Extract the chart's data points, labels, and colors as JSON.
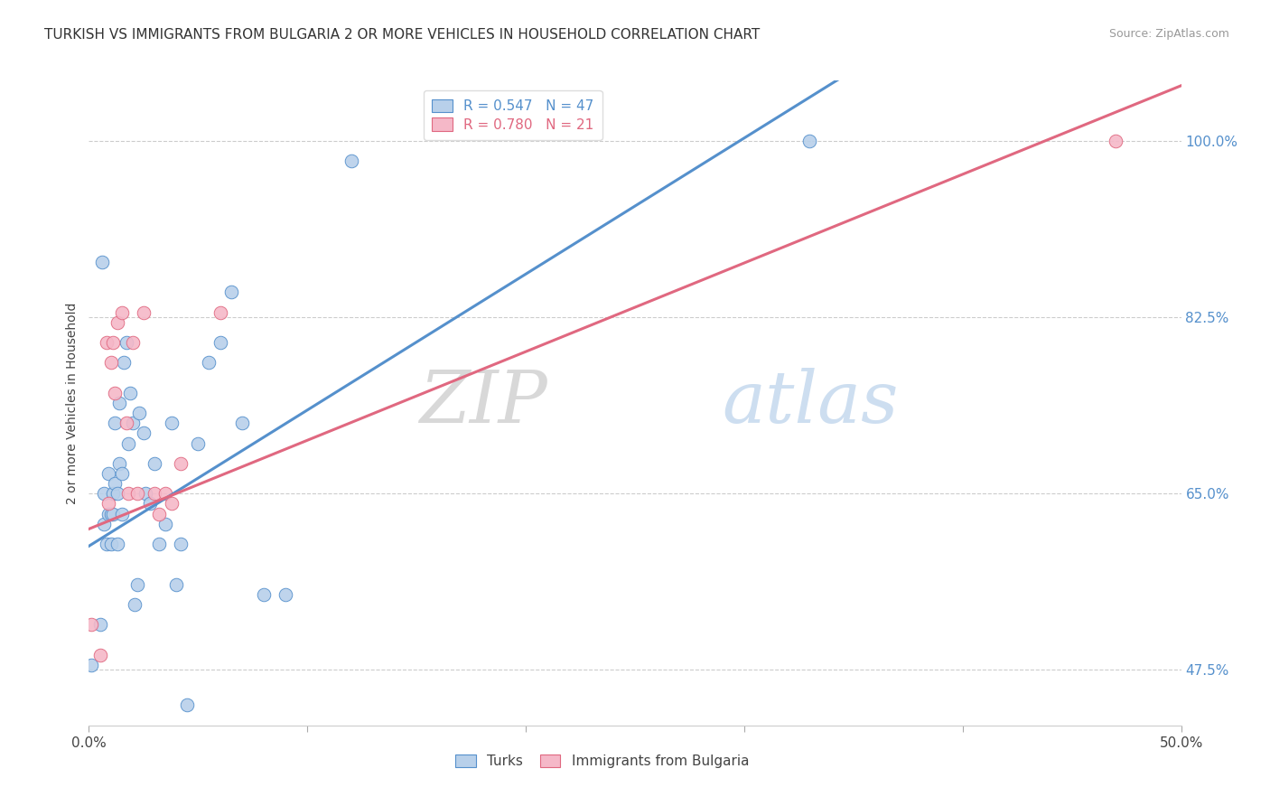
{
  "title": "TURKISH VS IMMIGRANTS FROM BULGARIA 2 OR MORE VEHICLES IN HOUSEHOLD CORRELATION CHART",
  "source": "Source: ZipAtlas.com",
  "ylabel": "2 or more Vehicles in Household",
  "ytick_labels": [
    "47.5%",
    "65.0%",
    "82.5%",
    "100.0%"
  ],
  "ytick_values": [
    0.475,
    0.65,
    0.825,
    1.0
  ],
  "xmin": 0.0,
  "xmax": 0.5,
  "ymin": 0.42,
  "ymax": 1.06,
  "legend_blue_label": "R = 0.547   N = 47",
  "legend_pink_label": "R = 0.780   N = 21",
  "turks_color": "#b8d0ea",
  "bulgaria_color": "#f5b8c8",
  "turks_line_color": "#5590cc",
  "bulgaria_line_color": "#e06880",
  "watermark_zip": "ZIP",
  "watermark_atlas": "atlas",
  "turks_x": [
    0.001,
    0.005,
    0.006,
    0.007,
    0.007,
    0.008,
    0.009,
    0.009,
    0.01,
    0.01,
    0.011,
    0.011,
    0.012,
    0.012,
    0.013,
    0.013,
    0.014,
    0.014,
    0.015,
    0.015,
    0.016,
    0.017,
    0.018,
    0.019,
    0.02,
    0.021,
    0.022,
    0.023,
    0.025,
    0.026,
    0.028,
    0.03,
    0.032,
    0.035,
    0.038,
    0.04,
    0.042,
    0.045,
    0.05,
    0.055,
    0.06,
    0.065,
    0.07,
    0.08,
    0.09,
    0.12,
    0.33
  ],
  "turks_y": [
    0.48,
    0.52,
    0.88,
    0.62,
    0.65,
    0.6,
    0.63,
    0.67,
    0.6,
    0.63,
    0.63,
    0.65,
    0.66,
    0.72,
    0.6,
    0.65,
    0.68,
    0.74,
    0.63,
    0.67,
    0.78,
    0.8,
    0.7,
    0.75,
    0.72,
    0.54,
    0.56,
    0.73,
    0.71,
    0.65,
    0.64,
    0.68,
    0.6,
    0.62,
    0.72,
    0.56,
    0.6,
    0.44,
    0.7,
    0.78,
    0.8,
    0.85,
    0.72,
    0.55,
    0.55,
    0.98,
    1.0
  ],
  "bulgaria_x": [
    0.001,
    0.005,
    0.008,
    0.009,
    0.01,
    0.011,
    0.012,
    0.013,
    0.015,
    0.017,
    0.018,
    0.02,
    0.022,
    0.025,
    0.03,
    0.032,
    0.035,
    0.038,
    0.042,
    0.06,
    0.47
  ],
  "bulgaria_y": [
    0.52,
    0.49,
    0.8,
    0.64,
    0.78,
    0.8,
    0.75,
    0.82,
    0.83,
    0.72,
    0.65,
    0.8,
    0.65,
    0.83,
    0.65,
    0.63,
    0.65,
    0.64,
    0.68,
    0.83,
    1.0
  ],
  "turks_slope": 1.35,
  "turks_intercept": 0.598,
  "bulgaria_slope": 0.88,
  "bulgaria_intercept": 0.615
}
